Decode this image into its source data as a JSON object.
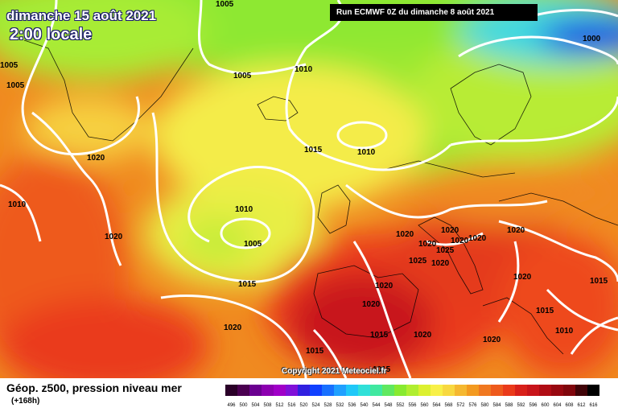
{
  "header": {
    "date_line": "dimanche 15 août 2021",
    "time_line": "2:00 locale",
    "run_info": "Run ECMWF 0Z du dimanche 8 août 2021"
  },
  "map": {
    "isobar_labels": [
      "1005",
      "1005",
      "1005",
      "1005",
      "1010",
      "1000",
      "1020",
      "1010",
      "1010",
      "1015",
      "1010",
      "1005",
      "1020",
      "1020",
      "1015",
      "1020",
      "1020",
      "1020",
      "1020",
      "1025",
      "1020",
      "1020",
      "1020",
      "1020",
      "1020",
      "1025",
      "1015",
      "1020",
      "1015",
      "1010",
      "1020",
      "1015",
      "1020",
      "1015",
      "1015"
    ],
    "colors": {
      "blue": "#1a3cd8",
      "green": "#9be830",
      "yellow": "#f7f04a",
      "orange": "#f3a11e",
      "red": "#ea3a1a",
      "dark_red": "#c8141a",
      "isobar": "#ffffff"
    }
  },
  "legend": {
    "title": "Géop. z500, pression niveau mer",
    "subtitle": "(+168h)",
    "scale_values": [
      "496",
      "500",
      "504",
      "508",
      "512",
      "516",
      "520",
      "524",
      "528",
      "532",
      "536",
      "540",
      "544",
      "548",
      "552",
      "556",
      "560",
      "564",
      "568",
      "572",
      "576",
      "580",
      "584",
      "588",
      "592",
      "596",
      "600",
      "604",
      "608",
      "612",
      "616"
    ],
    "scale_colors": [
      "#2a0028",
      "#4a0050",
      "#6a0090",
      "#8c00b0",
      "#a000c8",
      "#8010d8",
      "#3020e0",
      "#1040ff",
      "#1870ff",
      "#20a0ff",
      "#20c8f8",
      "#30e0d8",
      "#40e8a0",
      "#60e860",
      "#88ea30",
      "#b0ee30",
      "#dcf030",
      "#f8f048",
      "#f8d840",
      "#f5b830",
      "#f39a20",
      "#f07820",
      "#ee5a1c",
      "#ea3a1a",
      "#d8201a",
      "#c8141a",
      "#b00c14",
      "#980810",
      "#80060c",
      "#400408",
      "#000000"
    ]
  },
  "copyright": "Copyright 2021 Meteociel.fr"
}
